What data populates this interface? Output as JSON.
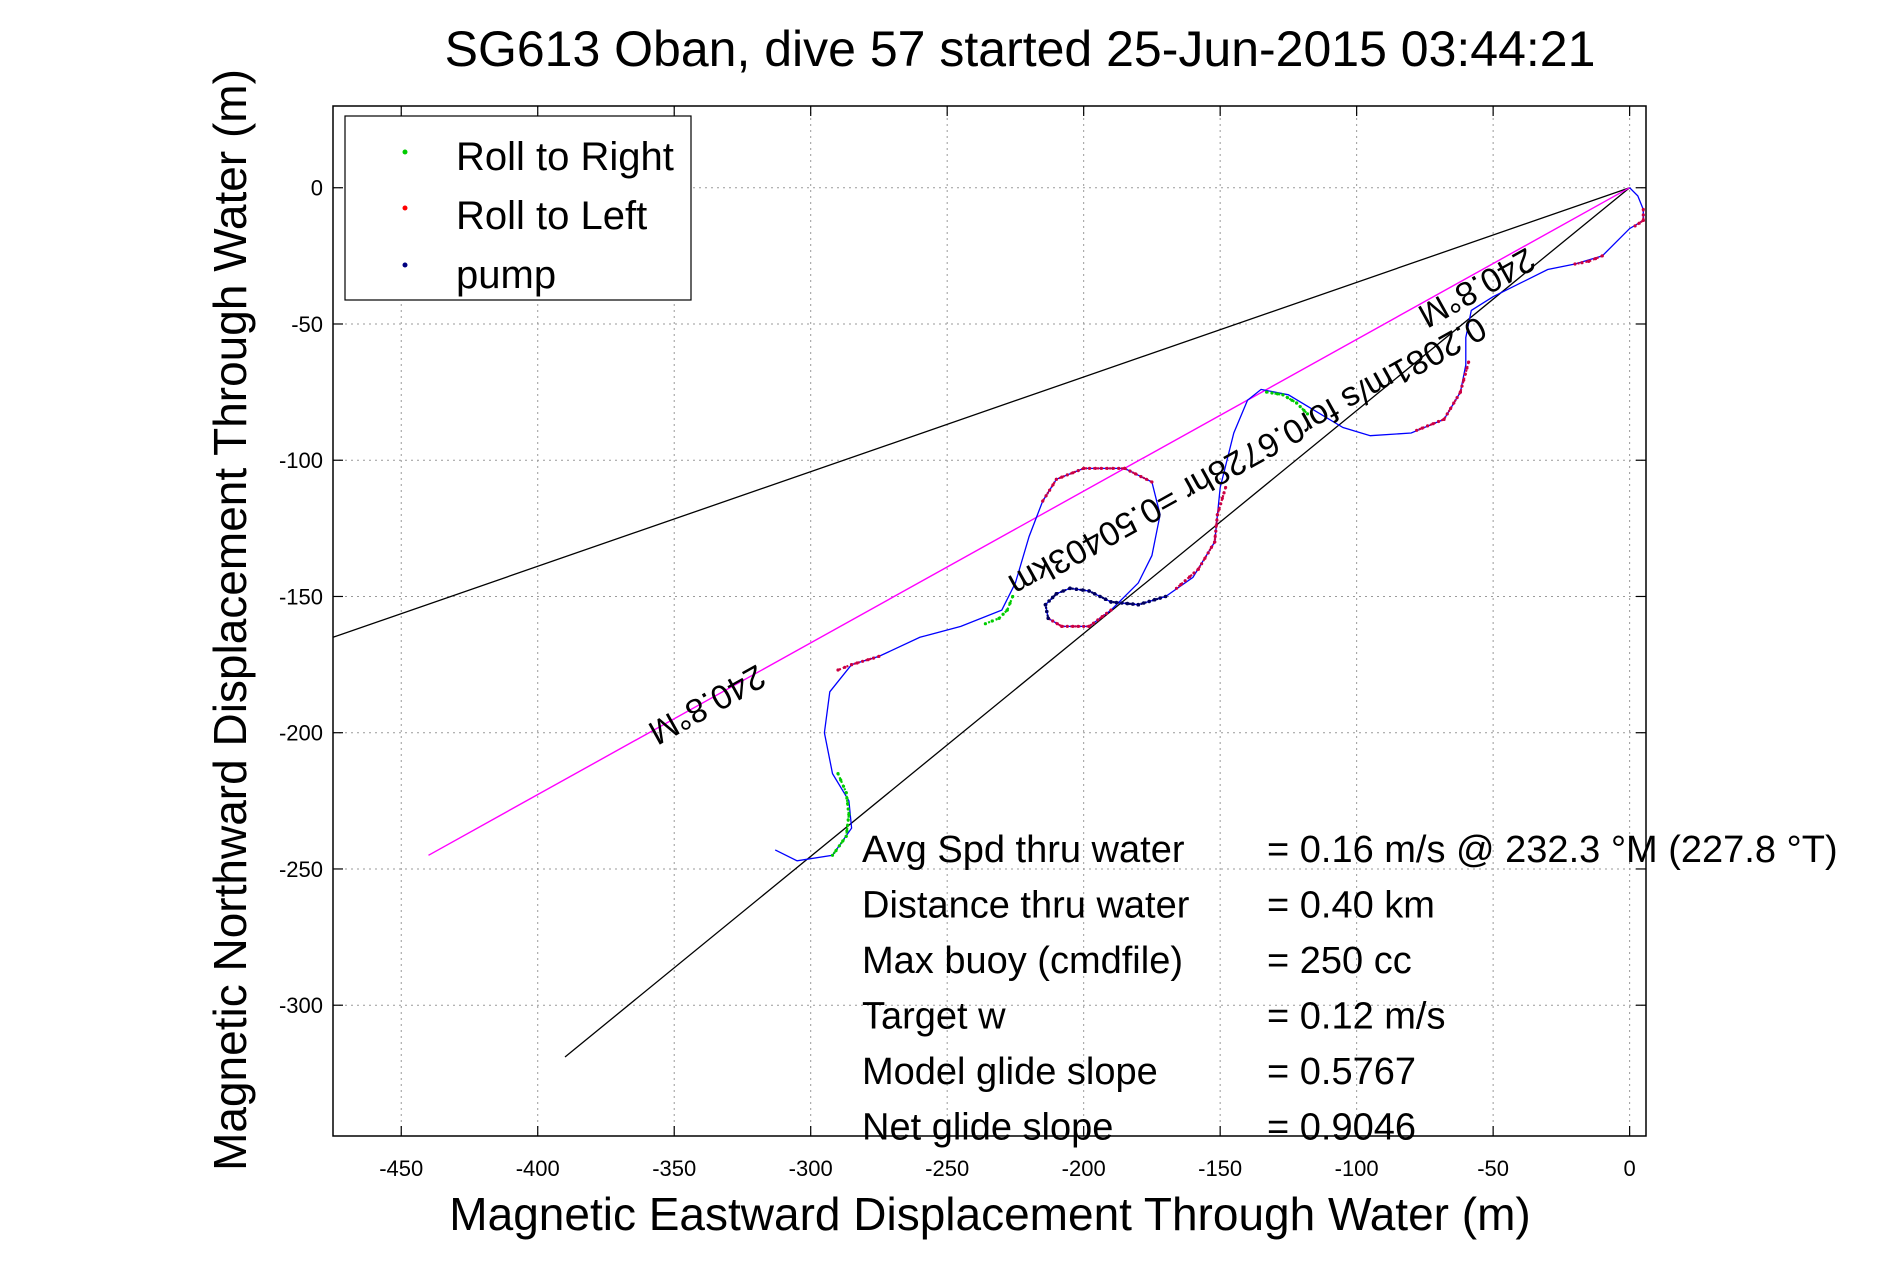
{
  "chart_data": {
    "type": "line",
    "title": "SG613 Oban, dive 57 started 25-Jun-2015 03:44:21",
    "xlabel": "Magnetic Eastward Displacement Through Water (m)",
    "ylabel": "Magnetic Northward Displacement Through Water (m)",
    "xlim": [
      -475,
      6
    ],
    "ylim": [
      -348,
      30
    ],
    "xticks": [
      -450,
      -400,
      -350,
      -300,
      -250,
      -200,
      -150,
      -100,
      -50,
      0
    ],
    "yticks": [
      0,
      -50,
      -100,
      -150,
      -200,
      -250,
      -300
    ],
    "grid": true,
    "legend": {
      "placement": "top-left",
      "entries": [
        {
          "label": "Roll to Right",
          "color": "#00cc00"
        },
        {
          "label": "Roll to Left",
          "color": "#ff0000"
        },
        {
          "label": "pump",
          "color": "#000080"
        }
      ]
    },
    "colors": {
      "track": "#0000ff",
      "heading_line": "#ff00ff",
      "bounds": "#000000",
      "roll_right": "#00cc00",
      "roll_left": "#cc0044",
      "pump": "#000060"
    },
    "track": [
      [
        0,
        0
      ],
      [
        3,
        -3
      ],
      [
        5,
        -8
      ],
      [
        5,
        -12
      ],
      [
        0,
        -15
      ],
      [
        -5,
        -20
      ],
      [
        -10,
        -25
      ],
      [
        -20,
        -28
      ],
      [
        -30,
        -30
      ],
      [
        -40,
        -35
      ],
      [
        -50,
        -40
      ],
      [
        -58,
        -45
      ],
      [
        -60,
        -55
      ],
      [
        -60,
        -65
      ],
      [
        -62,
        -75
      ],
      [
        -68,
        -85
      ],
      [
        -80,
        -90
      ],
      [
        -95,
        -91
      ],
      [
        -105,
        -88
      ],
      [
        -115,
        -82
      ],
      [
        -125,
        -76
      ],
      [
        -135,
        -74
      ],
      [
        -140,
        -78
      ],
      [
        -145,
        -90
      ],
      [
        -150,
        -110
      ],
      [
        -152,
        -130
      ],
      [
        -160,
        -143
      ],
      [
        -170,
        -150
      ],
      [
        -180,
        -153
      ],
      [
        -190,
        -152
      ],
      [
        -198,
        -148
      ],
      [
        -205,
        -147
      ],
      [
        -210,
        -149
      ],
      [
        -214,
        -153
      ],
      [
        -213,
        -158
      ],
      [
        -208,
        -161
      ],
      [
        -198,
        -161
      ],
      [
        -190,
        -155
      ],
      [
        -180,
        -145
      ],
      [
        -175,
        -135
      ],
      [
        -172,
        -120
      ],
      [
        -175,
        -108
      ],
      [
        -185,
        -103
      ],
      [
        -200,
        -103
      ],
      [
        -210,
        -107
      ],
      [
        -215,
        -115
      ],
      [
        -220,
        -128
      ],
      [
        -225,
        -145
      ],
      [
        -230,
        -155
      ],
      [
        -245,
        -161
      ],
      [
        -260,
        -165
      ],
      [
        -275,
        -172
      ],
      [
        -285,
        -175
      ],
      [
        -293,
        -185
      ],
      [
        -295,
        -200
      ],
      [
        -292,
        -215
      ],
      [
        -286,
        -225
      ],
      [
        -285,
        -235
      ],
      [
        -292,
        -245
      ],
      [
        -305,
        -247
      ],
      [
        -313,
        -243
      ]
    ],
    "roll_right": [
      [
        [
          -133,
          -75
        ],
        [
          -127,
          -76
        ],
        [
          -122,
          -79
        ],
        [
          -118,
          -83
        ]
      ],
      [
        [
          -226,
          -150
        ],
        [
          -228,
          -155
        ],
        [
          -231,
          -158
        ],
        [
          -236,
          -160
        ]
      ],
      [
        [
          -290,
          -215
        ],
        [
          -287,
          -222
        ],
        [
          -286,
          -230
        ],
        [
          -287,
          -238
        ],
        [
          -292,
          -245
        ]
      ]
    ],
    "roll_left": [
      [
        [
          5,
          -8
        ],
        [
          5,
          -12
        ],
        [
          2,
          -14
        ]
      ],
      [
        [
          -10,
          -25
        ],
        [
          -15,
          -27
        ],
        [
          -20,
          -28
        ]
      ],
      [
        [
          -59,
          -64
        ],
        [
          -62,
          -75
        ],
        [
          -68,
          -85
        ],
        [
          -78,
          -89
        ]
      ],
      [
        [
          -148,
          -110
        ],
        [
          -151,
          -120
        ],
        [
          -152,
          -130
        ],
        [
          -158,
          -140
        ],
        [
          -166,
          -147
        ]
      ],
      [
        [
          -175,
          -108
        ],
        [
          -185,
          -103
        ],
        [
          -200,
          -103
        ],
        [
          -210,
          -107
        ],
        [
          -215,
          -115
        ]
      ],
      [
        [
          -190,
          -155
        ],
        [
          -198,
          -161
        ],
        [
          -208,
          -161
        ],
        [
          -213,
          -158
        ]
      ],
      [
        [
          -275,
          -172
        ],
        [
          -285,
          -175
        ],
        [
          -290,
          -177
        ]
      ]
    ],
    "pump": [
      [
        [
          -170,
          -150
        ],
        [
          -180,
          -153
        ],
        [
          -190,
          -152
        ],
        [
          -198,
          -148
        ],
        [
          -205,
          -147
        ],
        [
          -210,
          -149
        ],
        [
          -214,
          -153
        ],
        [
          -213,
          -158
        ]
      ]
    ],
    "lines": {
      "heading_line": [
        [
          0,
          0
        ],
        [
          -440,
          -245
        ]
      ],
      "bound_upper": [
        [
          0,
          0
        ],
        [
          -475,
          -165
        ]
      ],
      "bound_lower": [
        [
          0,
          0
        ],
        [
          -390,
          -319
        ]
      ]
    },
    "heading_labels": [
      {
        "text": "240.8°M",
        "x": -58,
        "y": -33
      },
      {
        "text": "240.8°M",
        "x": -340,
        "y": -186
      },
      {
        "text": "0.2081m/s for0.6728hr =0.50403km",
        "x": -142,
        "y": -95
      }
    ],
    "annotations": [
      {
        "label": "Avg Spd thru water",
        "value": "=  0.16 m/s @ 232.3 °M (227.8 °T)"
      },
      {
        "label": "Distance thru water",
        "value": "=  0.40 km"
      },
      {
        "label": "Max buoy (cmdfile)",
        "value": "= 250 cc"
      },
      {
        "label": "Target w",
        "value": "= 0.12 m/s"
      },
      {
        "label": "Model glide slope",
        "value": "= 0.5767"
      },
      {
        "label": "Net glide slope",
        "value": "= 0.9046"
      }
    ]
  }
}
